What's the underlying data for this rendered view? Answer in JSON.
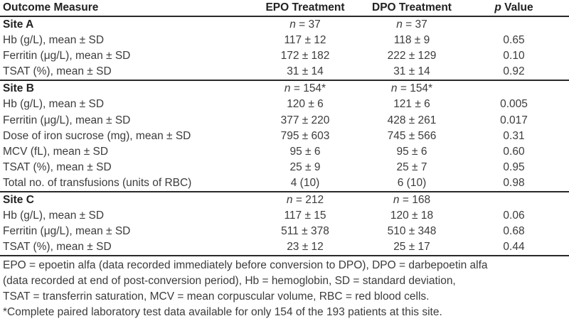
{
  "table": {
    "header": {
      "col1": "Outcome Measure",
      "col2": "EPO Treatment",
      "col3": "DPO Treatment",
      "col4_italic": "p",
      "col4_rest": " Value"
    },
    "sections": [
      {
        "name": "Site A",
        "n_row": {
          "italic": "n",
          "epo": " = 37",
          "dpo": " = 37"
        },
        "rows": [
          {
            "label": "Hb (g/L), mean ± SD",
            "epo": "117 ± 12",
            "dpo": "118 ± 9",
            "p": "0.65"
          },
          {
            "label": "Ferritin (μg/L), mean ± SD",
            "epo": "172 ± 182",
            "dpo": "222 ± 129",
            "p": "0.10"
          },
          {
            "label": "TSAT (%), mean ± SD",
            "epo": "31 ± 14",
            "dpo": "31 ± 14",
            "p": "0.92"
          }
        ]
      },
      {
        "name": "Site B",
        "n_row": {
          "italic": "n",
          "epo": " = 154*",
          "dpo": " = 154*"
        },
        "rows": [
          {
            "label": "Hb (g/L), mean ± SD",
            "epo": "120 ± 6",
            "dpo": "121 ± 6",
            "p": "0.005"
          },
          {
            "label": "Ferritin (μg/L), mean ± SD",
            "epo": "377 ± 220",
            "dpo": "428 ± 261",
            "p": "0.017"
          },
          {
            "label": "Dose of iron sucrose (mg), mean ± SD",
            "epo": "795 ± 603",
            "dpo": "745 ± 566",
            "p": "0.31"
          },
          {
            "label": "MCV (fL), mean ± SD",
            "epo": "95 ± 6",
            "dpo": "95 ± 6",
            "p": "0.60"
          },
          {
            "label": "TSAT (%), mean ± SD",
            "epo": "25 ± 9",
            "dpo": "25 ± 7",
            "p": "0.95"
          },
          {
            "label": "Total no. of transfusions (units of RBC)",
            "epo": "4 (10)",
            "dpo": "6 (10)",
            "p": "0.98"
          }
        ]
      },
      {
        "name": "Site C",
        "n_row": {
          "italic": "n",
          "epo": " = 212",
          "dpo": " = 168"
        },
        "rows": [
          {
            "label": "Hb (g/L), mean ± SD",
            "epo": "117 ± 15",
            "dpo": "120 ± 18",
            "p": "0.06"
          },
          {
            "label": "Ferritin (μg/L), mean ± SD",
            "epo": "511 ± 378",
            "dpo": "510 ± 348",
            "p": "0.68"
          },
          {
            "label": "TSAT (%), mean ± SD",
            "epo": "23 ± 12",
            "dpo": "25 ± 17",
            "p": "0.44"
          }
        ]
      }
    ],
    "footnotes": [
      "EPO = epoetin alfa (data recorded immediately before conversion to DPO), DPO = darbepoetin alfa",
      "(data recorded at end of post-conversion period), Hb = hemoglobin, SD = standard deviation,",
      "TSAT = transferrin saturation, MCV = mean corpuscular volume, RBC = red blood cells.",
      "*Complete paired laboratory test data available for only 154 of the 193 patients at this site."
    ]
  }
}
